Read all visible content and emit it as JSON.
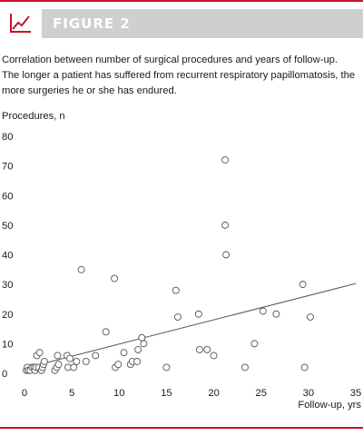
{
  "header": {
    "title": "FIGURE 2",
    "icon": "line-chart-icon",
    "accent_color": "#c8102e",
    "band_color": "#cfcfcf"
  },
  "caption": "Correlation between number of surgical procedures and years of follow-up. The longer a patient has suffered from recurrent respiratory papillomatosis, the more surgeries he or she has endured.",
  "chart_data": {
    "type": "scatter",
    "ylabel": "Procedures, n",
    "xlabel": "Follow-up, yrs",
    "xlim": [
      0,
      35
    ],
    "ylim": [
      0,
      80
    ],
    "x_ticks": [
      0,
      5,
      10,
      15,
      20,
      25,
      30,
      35
    ],
    "y_ticks": [
      0,
      10,
      20,
      30,
      40,
      50,
      60,
      70,
      80
    ],
    "grid": false,
    "marker": "open-circle",
    "marker_color": "#555555",
    "trendline": {
      "type": "linear",
      "from": [
        0,
        1.7
      ],
      "to": [
        35,
        30.3
      ],
      "color": "#555555"
    },
    "points": [
      [
        0.2,
        1
      ],
      [
        0.3,
        2
      ],
      [
        0.4,
        1
      ],
      [
        0.6,
        1
      ],
      [
        0.8,
        2
      ],
      [
        1.0,
        2
      ],
      [
        1.1,
        1
      ],
      [
        1.2,
        2
      ],
      [
        1.3,
        6
      ],
      [
        1.5,
        2
      ],
      [
        1.6,
        7
      ],
      [
        1.8,
        1
      ],
      [
        1.9,
        2
      ],
      [
        2.0,
        3
      ],
      [
        2.1,
        4
      ],
      [
        3.2,
        1
      ],
      [
        3.4,
        2
      ],
      [
        3.5,
        6
      ],
      [
        3.6,
        3
      ],
      [
        4.5,
        6
      ],
      [
        4.6,
        2
      ],
      [
        4.8,
        5
      ],
      [
        5.2,
        2
      ],
      [
        5.5,
        4
      ],
      [
        6.0,
        35
      ],
      [
        6.5,
        4
      ],
      [
        7.5,
        6
      ],
      [
        8.6,
        14
      ],
      [
        9.5,
        32
      ],
      [
        9.6,
        2
      ],
      [
        9.9,
        3
      ],
      [
        10.5,
        7
      ],
      [
        11.2,
        3
      ],
      [
        11.4,
        4
      ],
      [
        11.9,
        4
      ],
      [
        12.0,
        8
      ],
      [
        12.4,
        12
      ],
      [
        12.6,
        10
      ],
      [
        15.0,
        2
      ],
      [
        16.0,
        28
      ],
      [
        16.2,
        19
      ],
      [
        18.4,
        20
      ],
      [
        18.5,
        8
      ],
      [
        19.3,
        8
      ],
      [
        20.0,
        6
      ],
      [
        21.2,
        72
      ],
      [
        21.2,
        50
      ],
      [
        21.3,
        40
      ],
      [
        23.3,
        2
      ],
      [
        24.3,
        10
      ],
      [
        25.2,
        21
      ],
      [
        26.6,
        20
      ],
      [
        29.4,
        30
      ],
      [
        29.6,
        2
      ],
      [
        30.2,
        19
      ]
    ]
  }
}
